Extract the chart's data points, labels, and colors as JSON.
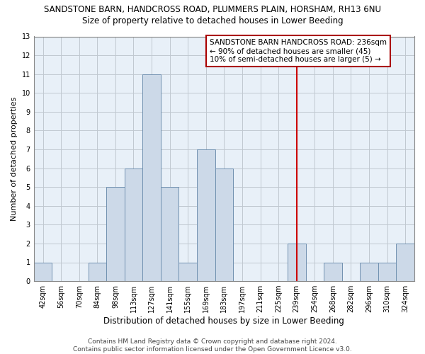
{
  "title": "SANDSTONE BARN, HANDCROSS ROAD, PLUMMERS PLAIN, HORSHAM, RH13 6NU",
  "subtitle": "Size of property relative to detached houses in Lower Beeding",
  "xlabel": "Distribution of detached houses by size in Lower Beeding",
  "ylabel": "Number of detached properties",
  "bin_labels": [
    "42sqm",
    "56sqm",
    "70sqm",
    "84sqm",
    "98sqm",
    "113sqm",
    "127sqm",
    "141sqm",
    "155sqm",
    "169sqm",
    "183sqm",
    "197sqm",
    "211sqm",
    "225sqm",
    "239sqm",
    "254sqm",
    "268sqm",
    "282sqm",
    "296sqm",
    "310sqm",
    "324sqm"
  ],
  "bar_heights": [
    1,
    0,
    0,
    1,
    5,
    6,
    11,
    5,
    1,
    7,
    6,
    0,
    0,
    0,
    2,
    0,
    1,
    0,
    1,
    1,
    2
  ],
  "bar_color": "#ccd9e8",
  "bar_edge_color": "#7090b0",
  "vline_x_index": 14,
  "vline_color": "#cc0000",
  "annotation_line1": "SANDSTONE BARN HANDCROSS ROAD: 236sqm",
  "annotation_line2": "← 90% of detached houses are smaller (45)",
  "annotation_line3": "10% of semi-detached houses are larger (5) →",
  "annotation_box_color": "#ffffff",
  "annotation_box_edge_color": "#aa0000",
  "ylim": [
    0,
    13
  ],
  "yticks": [
    0,
    1,
    2,
    3,
    4,
    5,
    6,
    7,
    8,
    9,
    10,
    11,
    12,
    13
  ],
  "grid_color": "#c0c8d0",
  "ax_bg_color": "#e8f0f8",
  "footer_text": "Contains HM Land Registry data © Crown copyright and database right 2024.\nContains public sector information licensed under the Open Government Licence v3.0.",
  "title_fontsize": 8.5,
  "subtitle_fontsize": 8.5,
  "xlabel_fontsize": 8.5,
  "ylabel_fontsize": 8,
  "tick_fontsize": 7,
  "annotation_fontsize": 7.5,
  "footer_fontsize": 6.5
}
